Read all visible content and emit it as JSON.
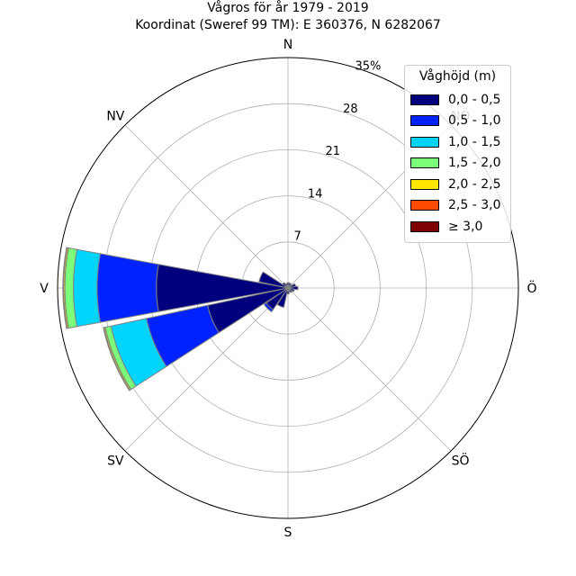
{
  "chart_data": {
    "type": "windrose",
    "title": "Vågros för år 1979 - 2019",
    "subtitle": "Koordinat (Sweref 99 TM): E 360376, N 6282067",
    "directions": [
      "N",
      "NÖ",
      "Ö",
      "SÖ",
      "S",
      "SV",
      "V",
      "NV"
    ],
    "cardinal_labels": [
      {
        "name": "N",
        "angle": 0
      },
      {
        "name": "NÖ",
        "angle": 45
      },
      {
        "name": "Ö",
        "angle": 90
      },
      {
        "name": "SÖ",
        "angle": 135
      },
      {
        "name": "S",
        "angle": 180
      },
      {
        "name": "SV",
        "angle": 225
      },
      {
        "name": "V",
        "angle": 270
      },
      {
        "name": "NV",
        "angle": 315
      }
    ],
    "radial_ticks": [
      "7",
      "14",
      "21",
      "28",
      "35%"
    ],
    "radial_tick_values": [
      7,
      14,
      21,
      28,
      35
    ],
    "rmax": 35,
    "legend_title": "Våghöjd (m)",
    "legend_position": "top-right",
    "bins": [
      {
        "label": "0,0 - 0,5",
        "color": "#00007f"
      },
      {
        "label": "0,5 - 1,0",
        "color": "#0022ff"
      },
      {
        "label": "1,0 - 1,5",
        "color": "#00d4ff"
      },
      {
        "label": "1,5 - 2,0",
        "color": "#7bff7b"
      },
      {
        "label": "2,0 - 2,5",
        "color": "#ffe500"
      },
      {
        "label": "2,5 - 3,0",
        "color": "#ff4a00"
      },
      {
        "label": "≥ 3,0",
        "color": "#7f0000"
      }
    ],
    "sectors": [
      {
        "direction_deg": 0,
        "values": [
          0.8,
          0,
          0,
          0,
          0,
          0,
          0
        ]
      },
      {
        "direction_deg": 22.5,
        "values": [
          0.8,
          0,
          0,
          0,
          0,
          0,
          0
        ]
      },
      {
        "direction_deg": 45,
        "values": [
          0.7,
          0,
          0,
          0,
          0,
          0,
          0
        ]
      },
      {
        "direction_deg": 67.5,
        "values": [
          1.2,
          0,
          0,
          0,
          0,
          0,
          0
        ]
      },
      {
        "direction_deg": 90,
        "values": [
          1.5,
          0,
          0,
          0,
          0,
          0,
          0
        ]
      },
      {
        "direction_deg": 112.5,
        "values": [
          1.0,
          0,
          0,
          0,
          0,
          0,
          0
        ]
      },
      {
        "direction_deg": 135,
        "values": [
          0.8,
          0,
          0,
          0,
          0,
          0,
          0
        ]
      },
      {
        "direction_deg": 157.5,
        "values": [
          0.7,
          0,
          0,
          0,
          0,
          0,
          0
        ]
      },
      {
        "direction_deg": 180,
        "values": [
          0.9,
          0,
          0,
          0,
          0,
          0,
          0
        ]
      },
      {
        "direction_deg": 202.5,
        "values": [
          3.0,
          0,
          0,
          0,
          0,
          0,
          0
        ]
      },
      {
        "direction_deg": 225,
        "values": [
          4.0,
          0.4,
          0,
          0,
          0,
          0,
          0
        ]
      },
      {
        "direction_deg": 247.5,
        "values": [
          12.5,
          9.5,
          5.5,
          0.9,
          0.2,
          0.1,
          0
        ]
      },
      {
        "direction_deg": 270,
        "values": [
          20.0,
          9.0,
          3.6,
          1.3,
          0.2,
          0.1,
          0
        ]
      },
      {
        "direction_deg": 292.5,
        "values": [
          4.5,
          0,
          0,
          0,
          0,
          0,
          0
        ]
      },
      {
        "direction_deg": 315,
        "values": [
          1.0,
          0,
          0,
          0,
          0,
          0,
          0
        ]
      },
      {
        "direction_deg": 337.5,
        "values": [
          0.7,
          0,
          0,
          0,
          0,
          0,
          0
        ]
      }
    ]
  }
}
